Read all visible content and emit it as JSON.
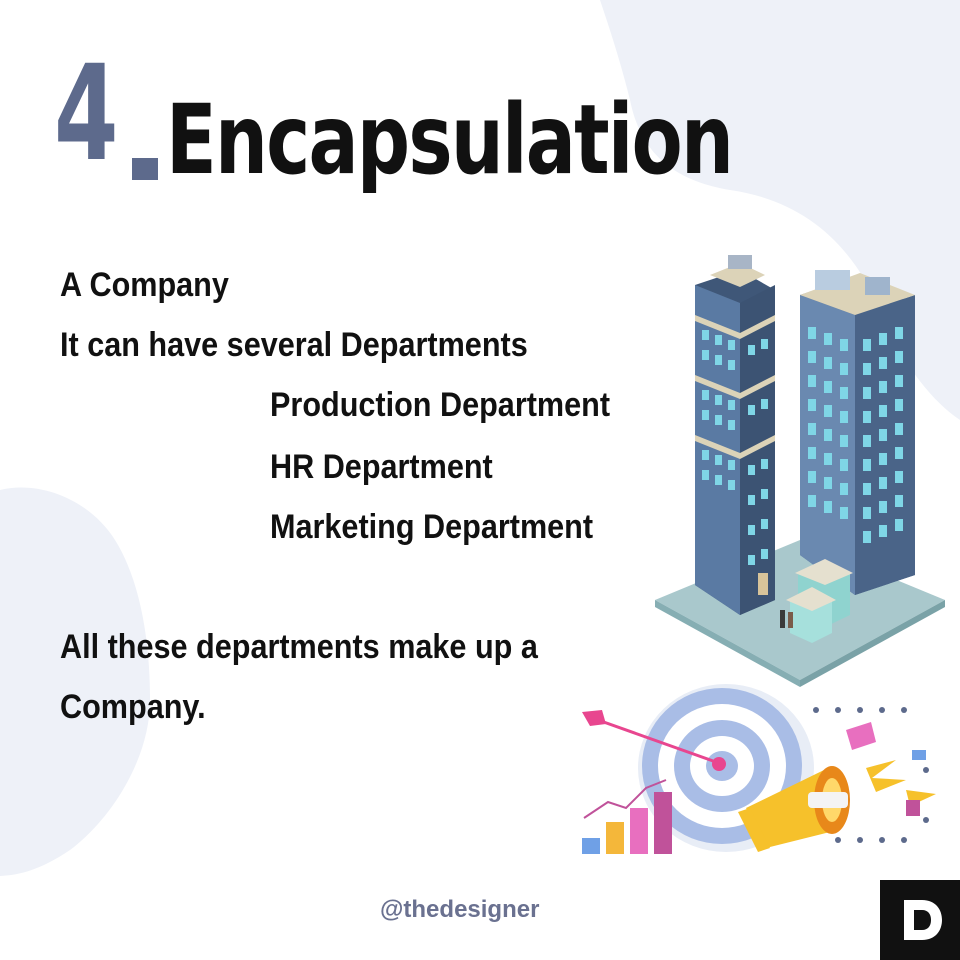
{
  "title": {
    "number": "4",
    "word": "Encapsulation"
  },
  "body": {
    "line1": "A Company",
    "line2": "It can have several Departments",
    "departments": [
      "Production Department",
      "HR Department",
      "Marketing Department"
    ],
    "conclusion_line1": "All these departments make up a",
    "conclusion_line2": "Company."
  },
  "footer": {
    "handle": "@thedesigner"
  },
  "colors": {
    "accent": "#5d6a8c",
    "blob": "#eef1f8",
    "text": "#111111"
  },
  "icons": {
    "buildings": "office-buildings-illustration",
    "marketing": "target-megaphone-illustration",
    "logo": "letter-d-logo"
  }
}
